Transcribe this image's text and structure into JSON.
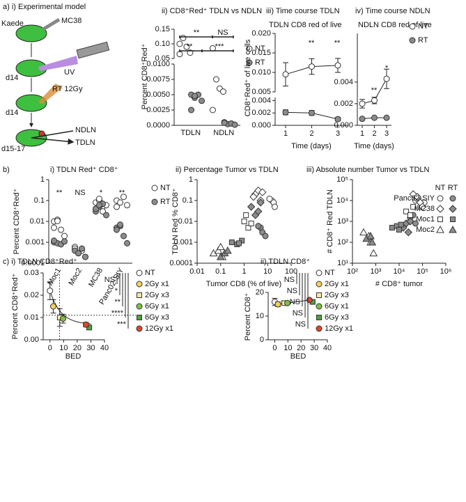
{
  "diagram": {
    "title": "a) i) Experimental model",
    "labels": [
      "Kaede",
      "MC38",
      "d14",
      "UV",
      "d14",
      "RT 12Gy",
      "d15-17",
      "NDLN",
      "TDLN"
    ]
  },
  "chart_data": [
    {
      "type": "dot",
      "title": "ii) CD8⁺Red⁺ TDLN vs NDLN",
      "ylabel": "Percent CD8⁺Red⁺",
      "categories": [
        "TDLN",
        "NDLN"
      ],
      "ylim": [
        0,
        0.01
      ],
      "yticks": [
        {
          "value": 0,
          "label": "0.0000"
        },
        0.0025,
        {
          "value": 0.005,
          "label": "0.0050"
        },
        0.0075,
        {
          "value": 0.01,
          "label": "0.0100"
        }
      ],
      "ylim_upper": [
        0.05,
        0.15
      ],
      "yticks_upper": [
        0.05,
        {
          "value": 0.1,
          "label": "0.10"
        },
        0.15
      ],
      "series": [
        {
          "name": "NT",
          "color": "#ffffff",
          "values": [
            [
              0.1,
              0.12,
              0.09,
              0.07,
              0.065
            ],
            [
              0.085,
              0.0075,
              0.006,
              0.0055,
              0.0025
            ]
          ]
        },
        {
          "name": "RT",
          "color": "#8c8c8c",
          "values": [
            [
              0.005,
              0.0045,
              0.005,
              0.004,
              0.0025,
              0.0048
            ],
            [
              0.0005,
              0.0002,
              0.0003,
              0.0001,
              0.0004
            ]
          ]
        }
      ],
      "annotations": [
        "**",
        "NS",
        "**",
        "***"
      ],
      "legend": true
    },
    {
      "type": "line",
      "title": "iii) Time course TDLN",
      "subtitle": "TDLN CD8 red of live",
      "ylabel": "CD8⁺Red⁺ of live cells",
      "xlabel": "Time (days)",
      "x": [
        1,
        2,
        3
      ],
      "xlim": [
        0.6,
        3.4
      ],
      "xticks": [
        1,
        2,
        3
      ],
      "ylim": [
        0,
        0.0045
      ],
      "yticks": [
        {
          "value": 0,
          "label": "0.000"
        },
        0.002,
        0.004
      ],
      "ylim_upper": [
        0.005,
        0.02
      ],
      "yticks_upper": [
        0.005,
        {
          "value": 0.01,
          "label": "0.010"
        },
        0.015,
        {
          "value": 0.02,
          "label": "0.020"
        }
      ],
      "series": [
        {
          "name": "NT",
          "color": "#ffffff",
          "values": [
            0.0095,
            0.0115,
            0.0118
          ],
          "errors": [
            0.003,
            0.002,
            0.0018
          ]
        },
        {
          "name": "RT",
          "color": "#8c8c8c",
          "values": [
            0.0021,
            0.002,
            0.001
          ],
          "errors": [
            0.0004,
            0.0004,
            0.0003
          ]
        }
      ],
      "annotations": [
        "**",
        "**"
      ]
    },
    {
      "type": "line",
      "title": "iv) Time course NDLN",
      "subtitle": "NDLN CD8 red of live",
      "xlabel": "Time (days)",
      "x": [
        1,
        2,
        3
      ],
      "xlim": [
        0.6,
        3.4
      ],
      "xticks": [
        1,
        2,
        3
      ],
      "ylim": [
        0,
        0.0085
      ],
      "yticks": [
        {
          "value": 0,
          "label": "0.000"
        },
        0.002,
        0.004
      ],
      "series": [
        {
          "name": "NT",
          "color": "#ffffff",
          "values": [
            0.002,
            0.0023,
            0.0043
          ],
          "errors": [
            0.0004,
            0.0003,
            0.0009
          ]
        },
        {
          "name": "RT",
          "color": "#8c8c8c",
          "values": [
            0.0006,
            0.0007,
            0.0007
          ],
          "errors": [
            0.0001,
            0.0001,
            0.0001
          ]
        }
      ],
      "annotations": [
        "**",
        "*"
      ],
      "legend": true
    },
    {
      "type": "dot",
      "panel": "b)",
      "title": "i) TDLN Red⁺ CD8⁺",
      "ylabel": "Percent CD8⁺Red⁺",
      "ylog": true,
      "categories": [
        "Moc1",
        "Moc2",
        "MC38",
        "Panc02-SIY"
      ],
      "ylim": [
        0.0001,
        1
      ],
      "yticks": [
        0.0001,
        0.001,
        0.01,
        0.1,
        1
      ],
      "series": [
        {
          "name": "NT",
          "color": "#ffffff",
          "values": [
            [
              0.01,
              0.012,
              0.004,
              0.002,
              0.005,
              0.0105
            ],
            [
              0.0006,
              0.0003,
              0.0004,
              0.0002,
              0.0005
            ],
            [
              0.08,
              0.1,
              0.05,
              0.06,
              0.04,
              0.12,
              0.03
            ],
            [
              0.1,
              0.08,
              0.15,
              0.06,
              0.05
            ]
          ]
        },
        {
          "name": "RT",
          "color": "#8c8c8c",
          "values": [
            [
              0.001,
              0.0009,
              0.0008,
              0.0011,
              0.0012
            ],
            [
              0.0004,
              0.0003,
              0.0005,
              0.0002
            ],
            [
              0.03,
              0.05,
              0.07,
              0.02,
              0.04,
              0.06
            ],
            [
              0.005,
              0.006,
              0.002,
              0.0009,
              0.004,
              0.007
            ]
          ]
        }
      ],
      "annotations": [
        "**",
        "NS",
        "*",
        "**"
      ],
      "legend": true
    },
    {
      "type": "scatter",
      "title": "ii) Percentage Tumor vs TDLN",
      "xlabel": "Tumor CD8 (% of live)",
      "ylabel": "TDLN Red % CD8⁺",
      "xlog": true,
      "ylog": true,
      "xlim": [
        0.01,
        100
      ],
      "xticks": [
        0.01,
        0.1,
        1,
        10,
        100
      ],
      "ylim": [
        0.0001,
        1
      ],
      "yticks": [
        0.0001,
        0.001,
        0.01,
        0.1,
        1
      ],
      "conditions": [
        {
          "color": "#ffffff"
        },
        {
          "color": "#8c8c8c"
        }
      ],
      "series": [
        {
          "marker": "circle",
          "points": [
            {
              "x": [
                15,
                18,
                20,
                12
              ],
              "y": [
                0.1,
                0.08,
                0.05,
                0.12
              ]
            },
            {
              "x": [
                5,
                6,
                4,
                8
              ],
              "y": [
                0.005,
                0.003,
                0.006,
                0.002
              ]
            }
          ]
        },
        {
          "marker": "diamond",
          "points": [
            {
              "x": [
                3,
                4,
                5,
                2.5,
                6
              ],
              "y": [
                0.2,
                0.3,
                0.1,
                0.15,
                0.25
              ]
            },
            {
              "x": [
                2,
                3,
                4,
                5
              ],
              "y": [
                0.05,
                0.02,
                0.03,
                0.08
              ]
            }
          ]
        },
        {
          "marker": "square",
          "points": [
            {
              "x": [
                1,
                1.5,
                1.2,
                2
              ],
              "y": [
                0.01,
                0.005,
                0.02,
                0.008
              ]
            },
            {
              "x": [
                0.3,
                0.5,
                0.8,
                0.6
              ],
              "y": [
                0.001,
                0.0008,
                0.0012,
                0.0009
              ]
            }
          ]
        },
        {
          "marker": "triangle",
          "points": [
            {
              "x": [
                0.05,
                0.08,
                0.1,
                0.12
              ],
              "y": [
                0.0003,
                0.0004,
                0.0006,
                0.0002
              ]
            },
            {
              "x": [
                0.1,
                0.15,
                0.2
              ],
              "y": [
                0.0002,
                0.0003,
                0.0004
              ]
            }
          ]
        }
      ]
    },
    {
      "type": "scatter",
      "title": "iii) Absolute number Tumor vs TDLN",
      "xlabel": "# CD8⁺ tumor",
      "ylabel": "# CD8⁺ Red TDLN",
      "xlog": true,
      "ylog": true,
      "xlim": [
        100,
        1000000
      ],
      "xticks": [
        {
          "value": 100,
          "label": "10²"
        },
        {
          "value": 1000,
          "label": "10³"
        },
        {
          "value": 10000,
          "label": "10⁴"
        },
        {
          "value": 100000,
          "label": "10⁵"
        },
        {
          "value": 1000000,
          "label": "10⁶"
        }
      ],
      "ylim": [
        10,
        100000
      ],
      "yticks": [
        {
          "value": 10,
          "label": "10¹"
        },
        {
          "value": 100,
          "label": "10²"
        },
        {
          "value": 1000,
          "label": "10³"
        },
        {
          "value": 10000,
          "label": "10⁴"
        },
        {
          "value": 100000,
          "label": "10⁵"
        }
      ],
      "conditions": [
        {
          "name": "NT",
          "color": "#ffffff"
        },
        {
          "name": "RT",
          "color": "#8c8c8c"
        }
      ],
      "series": [
        {
          "name": "Panc02-SIY",
          "marker": "circle",
          "points": [
            {
              "x": [
                50000,
                80000,
                120000,
                60000
              ],
              "y": [
                10000,
                5000,
                8000,
                12000
              ]
            },
            {
              "x": [
                30000,
                40000,
                50000
              ],
              "y": [
                1500,
                2000,
                800
              ]
            }
          ]
        },
        {
          "name": "MC38",
          "marker": "diamond",
          "points": [
            {
              "x": [
                40000,
                60000,
                80000,
                100000
              ],
              "y": [
                20000,
                15000,
                8000,
                5000
              ]
            },
            {
              "x": [
                15000,
                20000,
                25000,
                30000
              ],
              "y": [
                500,
                800,
                300,
                1000
              ]
            }
          ]
        },
        {
          "name": "Moc1",
          "marker": "square",
          "points": [
            {
              "x": [
                20000,
                30000,
                40000
              ],
              "y": [
                3000,
                2000,
                5000
              ]
            },
            {
              "x": [
                5000,
                8000,
                10000,
                12000
              ],
              "y": [
                500,
                600,
                400,
                700
              ]
            }
          ]
        },
        {
          "name": "Moc2",
          "marker": "triangle",
          "points": [
            {
              "x": [
                300,
                500,
                600,
                800
              ],
              "y": [
                300,
                200,
                100,
                30
              ]
            },
            {
              "x": [
                400,
                600,
                700
              ],
              "y": [
                150,
                200,
                100
              ]
            }
          ]
        }
      ]
    },
    {
      "type": "errorbar",
      "title": "c) i) TDLN CD8⁺Red⁺",
      "ylabel": "Percent CD8⁺Red⁺",
      "xlabel": "BED",
      "xlim": [
        -5,
        40
      ],
      "xticks": [
        0,
        10,
        20,
        30,
        40
      ],
      "ylim": [
        0,
        0.03
      ],
      "yticks": [
        {
          "value": 0,
          "label": "0.00"
        },
        0.01,
        0.02,
        0.03
      ],
      "ref_x": 7,
      "ref_y": 0.011,
      "series": [
        {
          "name": "NT",
          "color": "#ffffff",
          "x": 0,
          "value": 0.022,
          "error": 0.004
        },
        {
          "name": "2Gy x1",
          "color": "#f2d15c",
          "x": 2.4,
          "value": 0.015,
          "error": 0.003
        },
        {
          "name": "2Gy x3",
          "color": "#f5e9a0",
          "x": 7.2,
          "value": 0.01,
          "error": 0.004
        },
        {
          "name": "6Gy x1",
          "color": "#7cc142",
          "x": 9.6,
          "value": 0.0095,
          "error": 0.002
        },
        {
          "name": "6Gy x3",
          "color": "#4aa63a",
          "x": 28.8,
          "value": 0.0055,
          "error": 0.0008
        },
        {
          "name": "12Gy x1",
          "color": "#e0452f",
          "x": 26.4,
          "value": 0.0068,
          "error": 0.001
        }
      ],
      "significance": [
        "NS",
        "*",
        "**",
        "****",
        "***"
      ]
    },
    {
      "type": "errorbar",
      "title": "ii) TDLN CD8⁺",
      "ylabel": "Percent CD8⁺",
      "xlabel": "BED",
      "connect": true,
      "xlim": [
        -5,
        40
      ],
      "xticks": [
        0,
        10,
        20,
        30,
        40
      ],
      "ylim": [
        0,
        20
      ],
      "yticks": [
        0,
        10,
        20
      ],
      "series": [
        {
          "name": "NT",
          "color": "#ffffff",
          "x": 0,
          "value": 16,
          "error": 1.5
        },
        {
          "name": "2Gy x1",
          "color": "#f2d15c",
          "x": 2.4,
          "value": 15,
          "error": 1
        },
        {
          "name": "2Gy x3",
          "color": "#f5e9a0",
          "x": 7.2,
          "value": 15.5,
          "error": 0.7
        },
        {
          "name": "6Gy x1",
          "color": "#7cc142",
          "x": 9.6,
          "value": 15.5,
          "error": 0.5
        },
        {
          "name": "6Gy x3",
          "color": "#4aa63a",
          "x": 28.8,
          "value": 16,
          "error": 0.5
        },
        {
          "name": "12Gy x1",
          "color": "#e0452f",
          "x": 26.4,
          "value": 16.8,
          "error": 0.3
        }
      ],
      "significance": [
        "NS",
        "NS",
        "NS",
        "NS",
        "NS"
      ]
    }
  ]
}
